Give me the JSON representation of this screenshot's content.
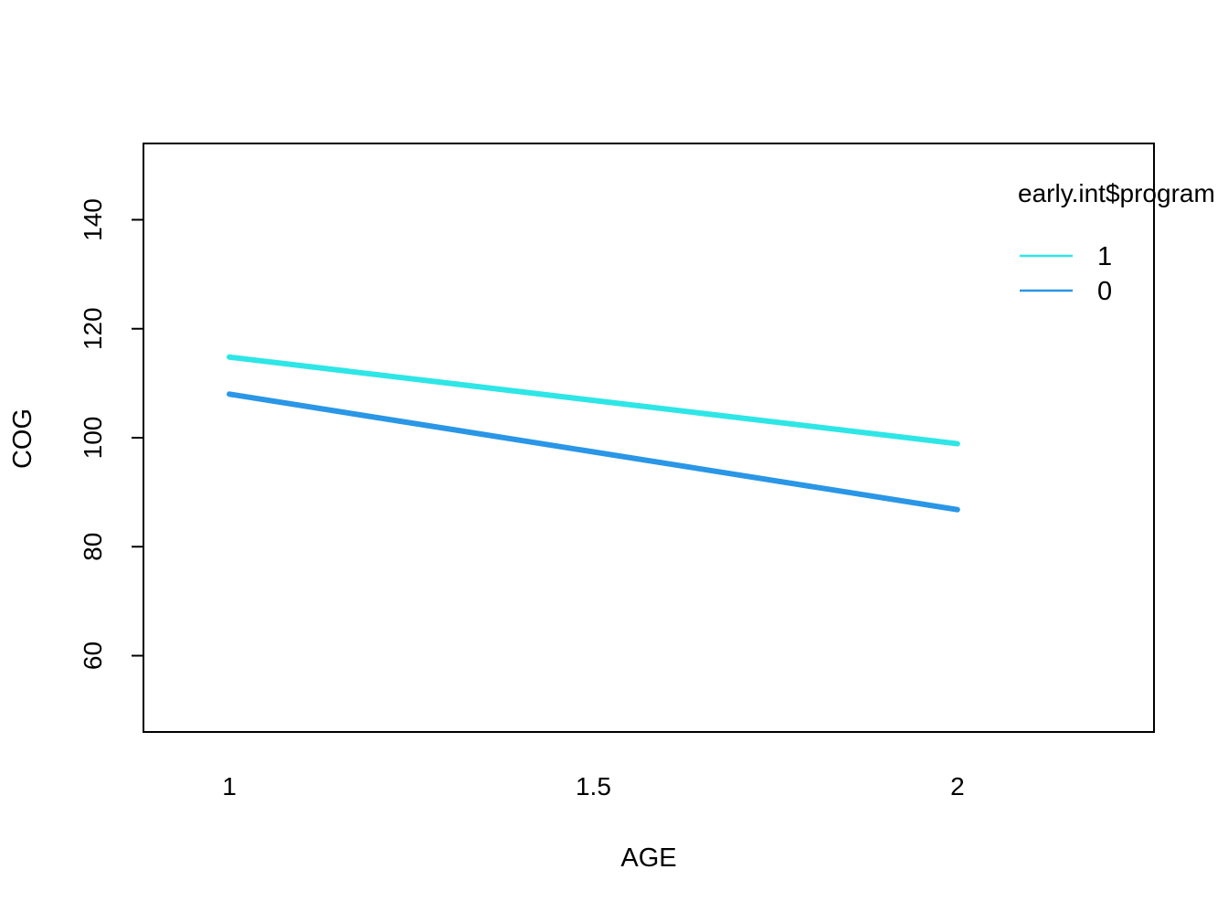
{
  "chart_data": {
    "type": "line",
    "title": "",
    "xlabel": "AGE",
    "ylabel": "COG",
    "x": [
      1,
      2
    ],
    "xticks": [
      "1",
      "1.5",
      "2"
    ],
    "yticks": [
      "60",
      "80",
      "100",
      "120",
      "140"
    ],
    "xlim": [
      0.882,
      2.27
    ],
    "ylim": [
      46,
      154
    ],
    "grid": false,
    "legend": {
      "title": "early.int$program",
      "placement": "top-right",
      "entries": [
        "1",
        "0"
      ]
    },
    "series": [
      {
        "name": "1",
        "values": [
          114.8,
          98.9
        ],
        "color": "#2EE6E6"
      },
      {
        "name": "0",
        "values": [
          108.0,
          86.8
        ],
        "color": "#2A96E6"
      }
    ]
  }
}
